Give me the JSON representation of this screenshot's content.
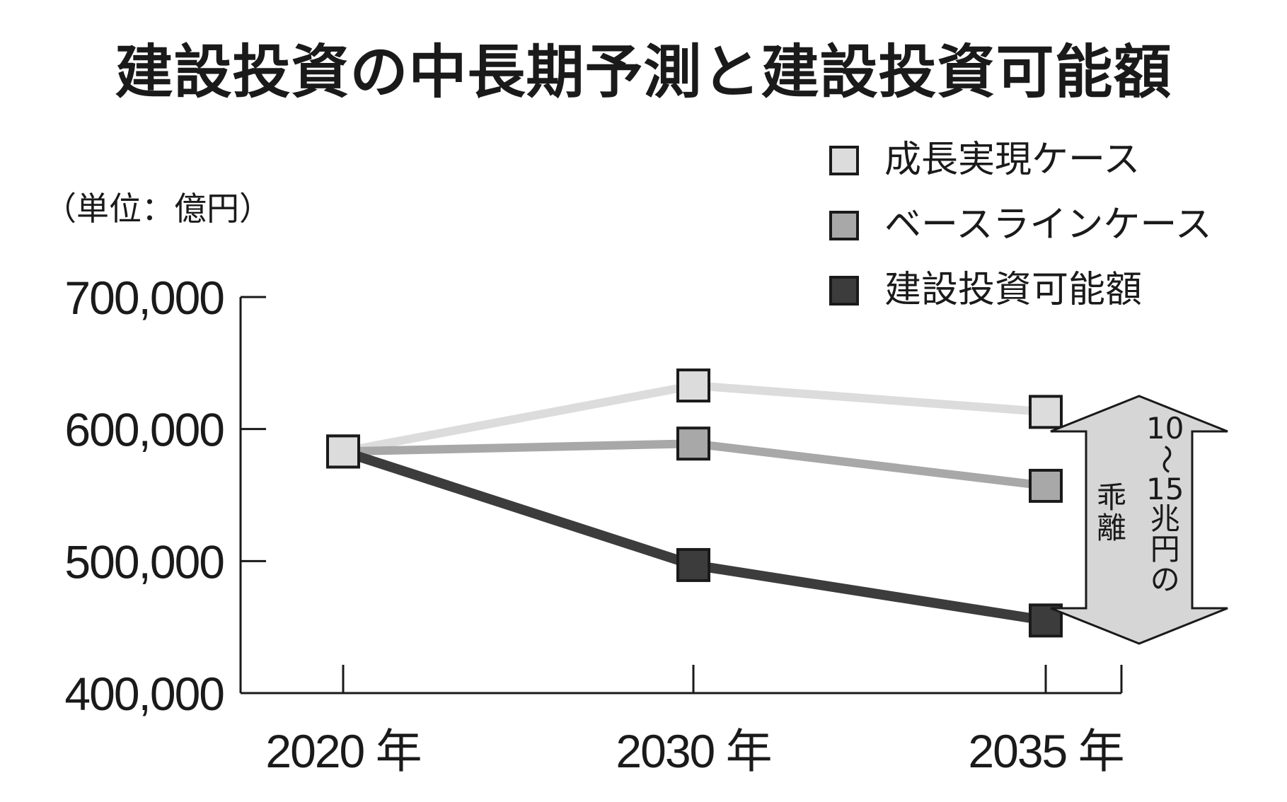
{
  "title": "建設投資の中長期予測と建設投資可能額",
  "unit": "（単位：億円）",
  "colors": {
    "growth": "#dcdcdc",
    "baseline": "#a8a8a8",
    "capacity": "#3c3c3c",
    "axis": "#1a1a1a",
    "arrow": "#d6d6d6"
  },
  "annotation": {
    "col1": "10〜15兆円の",
    "col2": "乖離"
  },
  "chart_data": {
    "type": "line",
    "categories": [
      "2020 年",
      "2030 年",
      "2035 年"
    ],
    "ylim": [
      400000,
      700000
    ],
    "yticks": [
      400000,
      500000,
      600000,
      700000
    ],
    "ytick_labels": [
      "400,000",
      "500,000",
      "600,000",
      "700,000"
    ],
    "grid": false,
    "legend_position": "top-right",
    "series": [
      {
        "name": "成長実現ケース",
        "values": [
          583000,
          633000,
          613000
        ]
      },
      {
        "name": "ベースラインケース",
        "values": [
          583000,
          589000,
          557000
        ]
      },
      {
        "name": "建設投資可能額",
        "values": [
          583000,
          497000,
          455000
        ]
      }
    ]
  }
}
